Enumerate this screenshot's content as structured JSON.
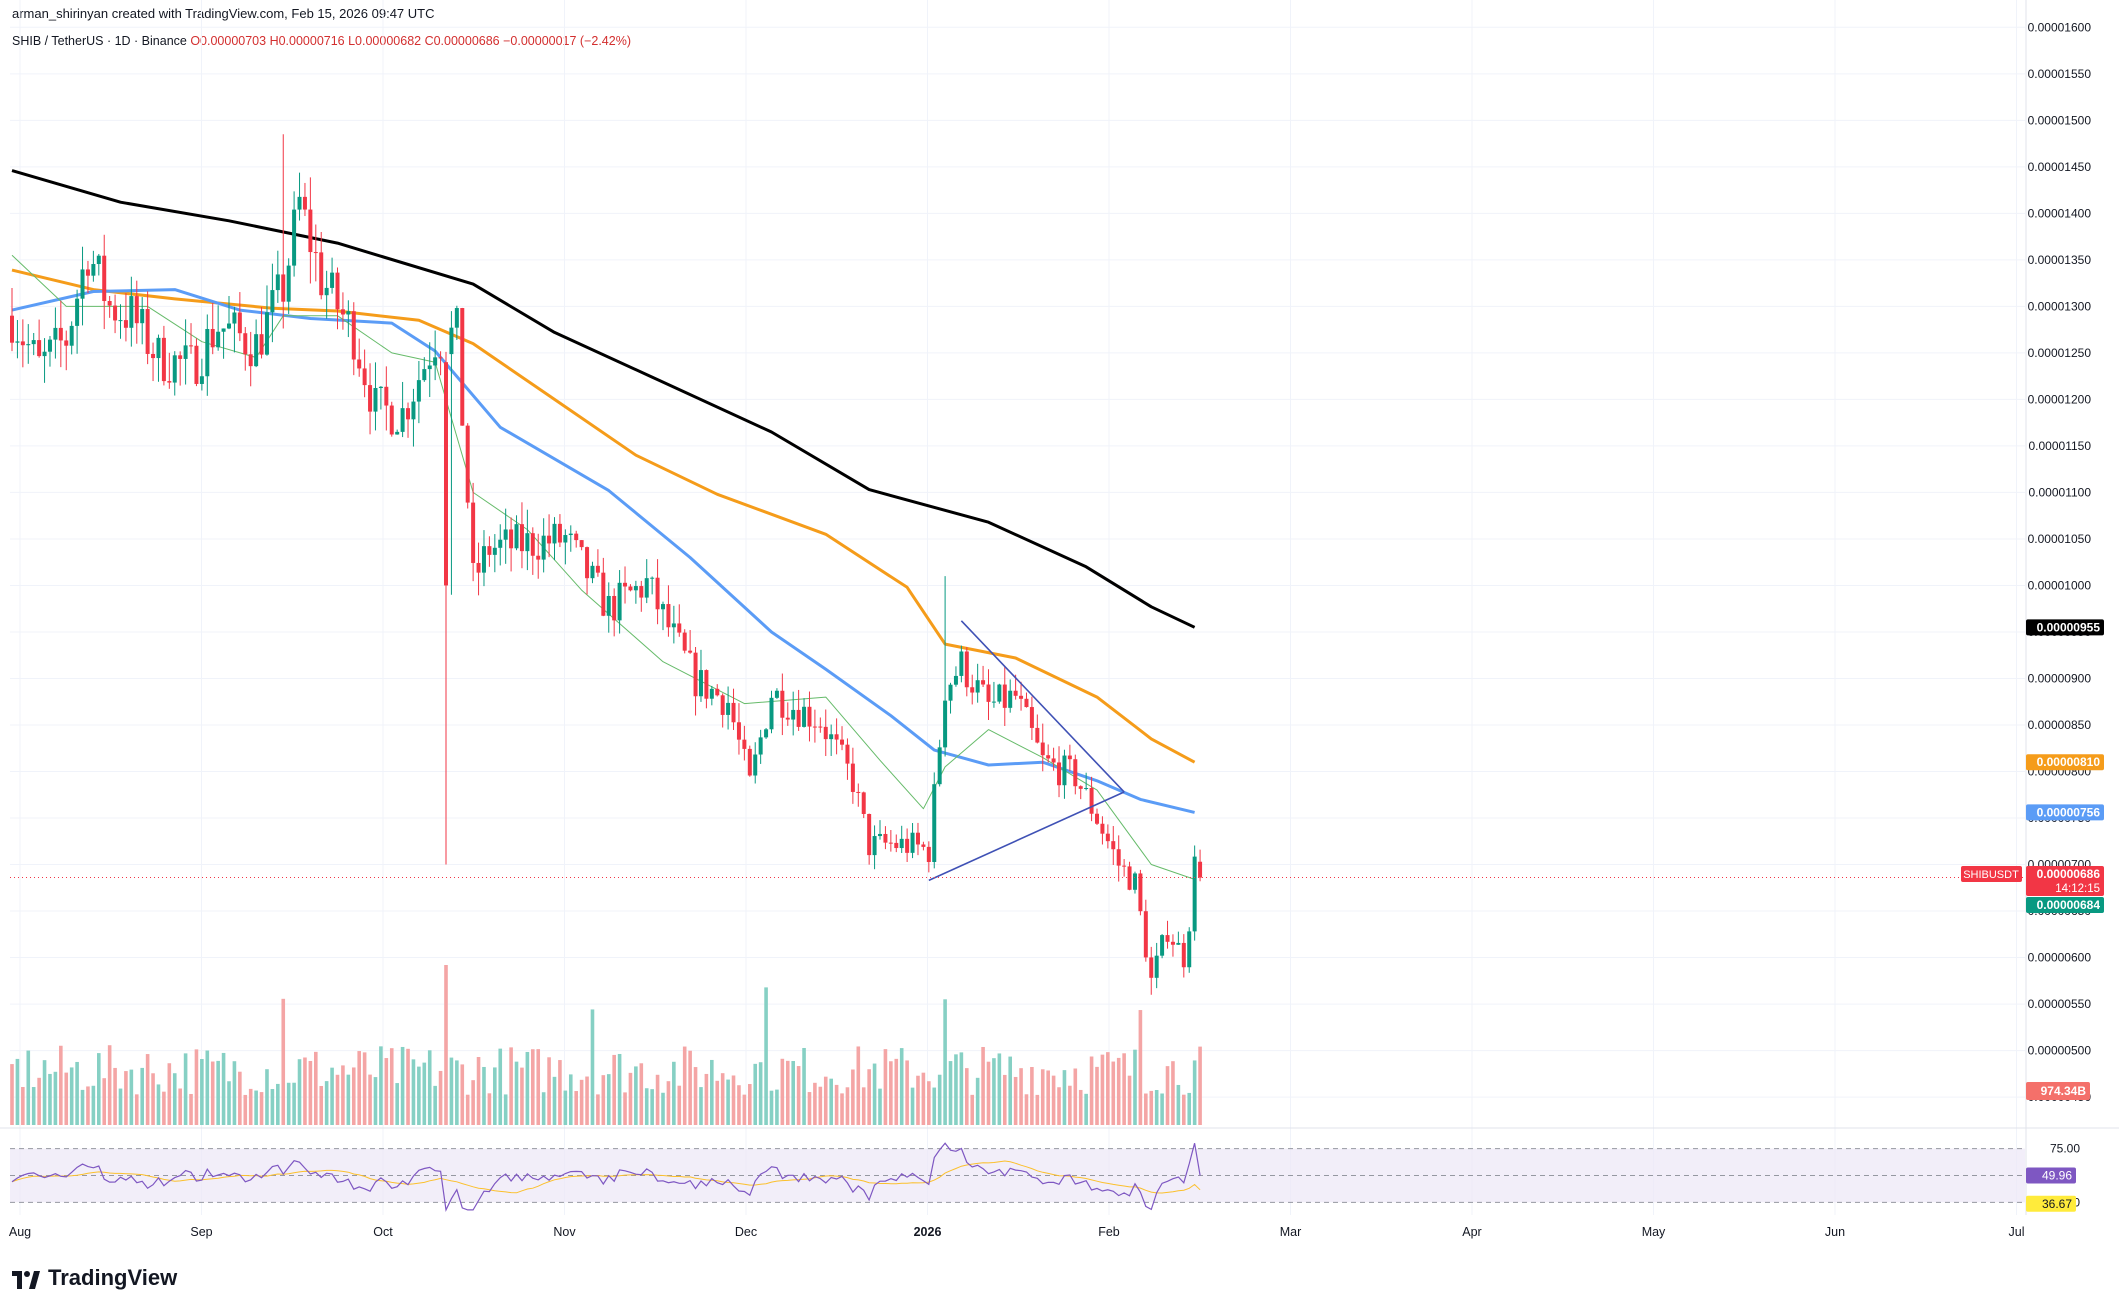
{
  "header": {
    "created_by": "arman_shirinyan created with TradingView.com, Feb 15, 2026 09:47 UTC",
    "symbol_line": "SHIB / TetherUS · 1D · Binance",
    "ohlc": "O0.00000703 H0.00000716 L0.00000682 C0.00000686 −0.00000017 (−2.42%)"
  },
  "branding": {
    "logo_text": "TradingView"
  },
  "chart_data": [
    {
      "type": "candlestick",
      "title": "SHIB / TetherUS · 1D · Binance",
      "y_axis": {
        "ticks": [
          "0.00001600",
          "0.00001550",
          "0.00001500",
          "0.00001450",
          "0.00001400",
          "0.00001350",
          "0.00001300",
          "0.00001250",
          "0.00001200",
          "0.00001150",
          "0.00001100",
          "0.00001050",
          "0.00001000",
          "0.00000950",
          "0.00000900",
          "0.00000850",
          "0.00000800",
          "0.00000750",
          "0.00000700",
          "0.00000650",
          "0.00000600",
          "0.00000550",
          "0.00000500",
          "0.00000450"
        ],
        "range": [
          4.2e-06,
          1.61e-05
        ]
      },
      "x_axis": {
        "labels": [
          "Aug",
          "Sep",
          "Oct",
          "Nov",
          "Dec",
          "2026",
          "Feb",
          "Mar",
          "Apr",
          "May",
          "Jun",
          "Jul"
        ],
        "range": [
          "2025-08-01",
          "2026-07-31"
        ]
      },
      "price_labels": [
        {
          "name": "ma200",
          "text": "0.00000955",
          "value": 9.55e-06,
          "color": "#000000"
        },
        {
          "name": "ma100",
          "text": "0.00000810",
          "value": 8.1e-06,
          "color": "#f59c1a"
        },
        {
          "name": "ma50",
          "text": "0.00000756",
          "value": 7.56e-06,
          "color": "#5b9cf6"
        },
        {
          "name": "last",
          "text": "0.00000686",
          "value": 6.86e-06,
          "color": "#f23645",
          "timer": "14:12:15",
          "symbol_tag": "SHIBUSDT"
        },
        {
          "name": "ma20",
          "text": "0.00000684",
          "value": 6.84e-06,
          "color": "#089981"
        }
      ],
      "volume_label": "974.34B",
      "moving_averages": [
        {
          "color": "#000000",
          "points": [
            [
              0,
              1.446e-05
            ],
            [
              20,
              1.412e-05
            ],
            [
              40,
              1.392e-05
            ],
            [
              60,
              1.368e-05
            ],
            [
              85,
              1.324e-05
            ],
            [
              100,
              1.272e-05
            ],
            [
              118,
              1.224e-05
            ],
            [
              140,
              1.165e-05
            ],
            [
              158,
              1.103e-05
            ],
            [
              180,
              1.068e-05
            ],
            [
              198,
              1.02e-05
            ],
            [
              210,
              9.77e-06
            ],
            [
              218,
              9.55e-06
            ]
          ]
        },
        {
          "color": "#f59c1a",
          "points": [
            [
              0,
              1.339e-05
            ],
            [
              15,
              1.318e-05
            ],
            [
              30,
              1.308e-05
            ],
            [
              48,
              1.298e-05
            ],
            [
              60,
              1.295e-05
            ],
            [
              75,
              1.285e-05
            ],
            [
              85,
              1.26e-05
            ],
            [
              100,
              1.2e-05
            ],
            [
              115,
              1.14e-05
            ],
            [
              130,
              1.098e-05
            ],
            [
              150,
              1.055e-05
            ],
            [
              165,
              9.98e-06
            ],
            [
              172,
              9.37e-06
            ],
            [
              185,
              9.22e-06
            ],
            [
              200,
              8.8e-06
            ],
            [
              210,
              8.35e-06
            ],
            [
              218,
              8.1e-06
            ]
          ]
        },
        {
          "color": "#5b9cf6",
          "points": [
            [
              0,
              1.296e-05
            ],
            [
              15,
              1.316e-05
            ],
            [
              30,
              1.318e-05
            ],
            [
              42,
              1.296e-05
            ],
            [
              55,
              1.287e-05
            ],
            [
              70,
              1.282e-05
            ],
            [
              78,
              1.252e-05
            ],
            [
              90,
              1.17e-05
            ],
            [
              110,
              1.102e-05
            ],
            [
              125,
              1.03e-05
            ],
            [
              140,
              9.5e-06
            ],
            [
              150,
              9.1e-06
            ],
            [
              162,
              8.6e-06
            ],
            [
              170,
              8.23e-06
            ],
            [
              180,
              8.07e-06
            ],
            [
              190,
              8.1e-06
            ],
            [
              200,
              7.9e-06
            ],
            [
              208,
              7.7e-06
            ],
            [
              218,
              7.56e-06
            ]
          ]
        },
        {
          "color": "#66bb6a",
          "points": [
            [
              0,
              1.355e-05
            ],
            [
              10,
              1.3e-05
            ],
            [
              25,
              1.3e-05
            ],
            [
              35,
              1.262e-05
            ],
            [
              45,
              1.245e-05
            ],
            [
              50,
              1.29e-05
            ],
            [
              60,
              1.29e-05
            ],
            [
              70,
              1.25e-05
            ],
            [
              78,
              1.24e-05
            ],
            [
              85,
              1.1e-05
            ],
            [
              95,
              1.06e-05
            ],
            [
              105,
              9.95e-06
            ],
            [
              120,
              9.18e-06
            ],
            [
              135,
              8.73e-06
            ],
            [
              150,
              8.8e-06
            ],
            [
              160,
              8.12e-06
            ],
            [
              168,
              7.6e-06
            ],
            [
              172,
              8.05e-06
            ],
            [
              180,
              8.45e-06
            ],
            [
              190,
              8.15e-06
            ],
            [
              200,
              7.8e-06
            ],
            [
              210,
              7e-06
            ],
            [
              218,
              6.84e-06
            ]
          ]
        }
      ],
      "trendlines": [
        {
          "color": "#3f51b5",
          "from": [
            175,
            9.62e-06
          ],
          "to": [
            205,
            7.78e-06
          ]
        },
        {
          "color": "#3f51b5",
          "from": [
            169,
            6.83e-06
          ],
          "to": [
            205,
            7.78e-06
          ]
        }
      ]
    },
    {
      "type": "line",
      "title": "RSI",
      "y_axis": {
        "ticks": [
          "75.00",
          "25.00"
        ],
        "range": [
          16,
          83
        ]
      },
      "band": [
        25,
        75
      ],
      "labels": [
        {
          "text": "49.96",
          "value": 49.96,
          "color": "#7e57c2"
        },
        {
          "text": "36.67",
          "value": 36.67,
          "color": "#ffeb3b"
        }
      ]
    }
  ]
}
